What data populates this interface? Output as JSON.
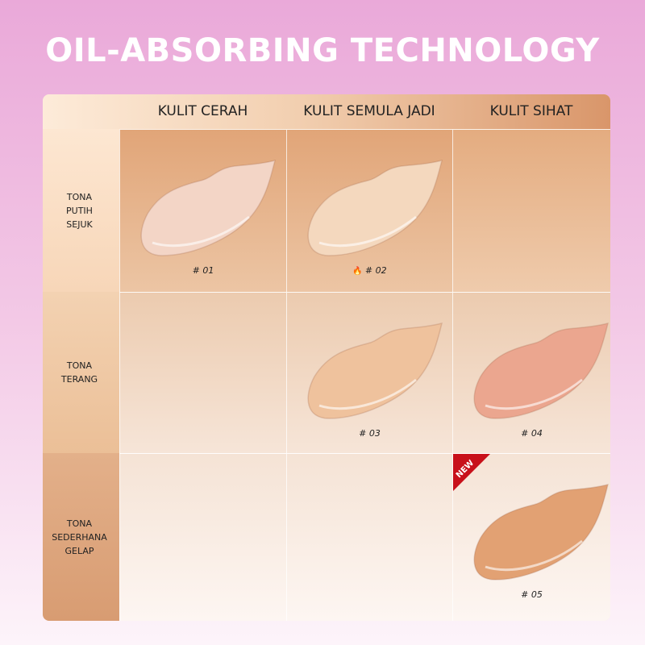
{
  "title": "OIL-ABSORBING TECHNOLOGY",
  "columns": [
    "KULIT CERAH",
    "KULIT SEMULA JADI",
    "KULIT SIHAT"
  ],
  "rows": [
    {
      "label": [
        "TONA",
        "PUTIH",
        "SEJUK"
      ]
    },
    {
      "label": [
        "TONA",
        "TERANG"
      ]
    },
    {
      "label": [
        "TONA",
        "SEDERHANA",
        "GELAP"
      ]
    }
  ],
  "shades": [
    {
      "code": "# 01",
      "color": "#f3d5c6",
      "row": 0,
      "col": 0
    },
    {
      "code": "# 02",
      "color": "#f4d8be",
      "row": 0,
      "col": 1,
      "badge": "fire-icon"
    },
    {
      "code": "# 03",
      "color": "#efc29d",
      "row": 1,
      "col": 1
    },
    {
      "code": "# 04",
      "color": "#eba68f",
      "row": 1,
      "col": 2
    },
    {
      "code": "# 05",
      "color": "#e2a173",
      "row": 2,
      "col": 2,
      "badge": "NEW"
    }
  ],
  "colors": {
    "new_badge": "#c8101a",
    "fire": "#e23b1a"
  }
}
